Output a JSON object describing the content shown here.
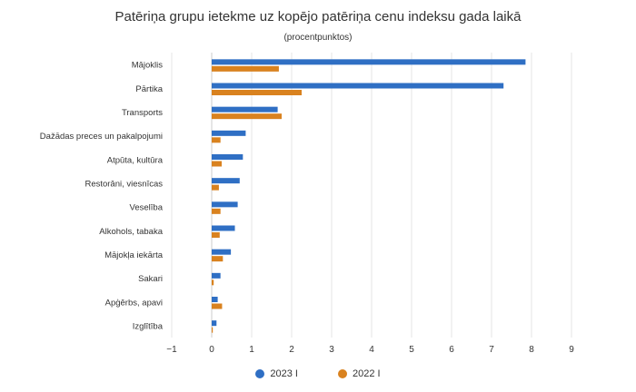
{
  "chart_data": {
    "type": "bar",
    "orientation": "horizontal",
    "title": "Patēriņa grupu ietekme uz kopējo patēriņa cenu indeksu gada laikā",
    "subtitle": "(procentpunktos)",
    "categories": [
      "Mājoklis",
      "Pārtika",
      "Transports",
      "Dažādas preces un pakalpojumi",
      "Atpūta, kultūra",
      "Restorāni, viesnīcas",
      "Veselība",
      "Alkohols, tabaka",
      "Mājokļa iekārta",
      "Sakari",
      "Apģērbs, apavi",
      "Izglītība"
    ],
    "series": [
      {
        "name": "2023 I",
        "color": "#2f6fc4",
        "values": [
          7.85,
          7.3,
          1.65,
          0.85,
          0.78,
          0.7,
          0.65,
          0.58,
          0.48,
          0.22,
          0.15,
          0.12
        ]
      },
      {
        "name": "2022 I",
        "color": "#d9821f",
        "values": [
          1.68,
          2.25,
          1.75,
          0.22,
          0.25,
          0.18,
          0.22,
          0.2,
          0.28,
          0.05,
          0.26,
          0.02
        ]
      }
    ],
    "xlim": [
      -1,
      9
    ],
    "xticks": [
      "−1",
      "0",
      "1",
      "2",
      "3",
      "4",
      "5",
      "6",
      "7",
      "8",
      "9"
    ],
    "grid": true,
    "legend": "bottom-center"
  }
}
